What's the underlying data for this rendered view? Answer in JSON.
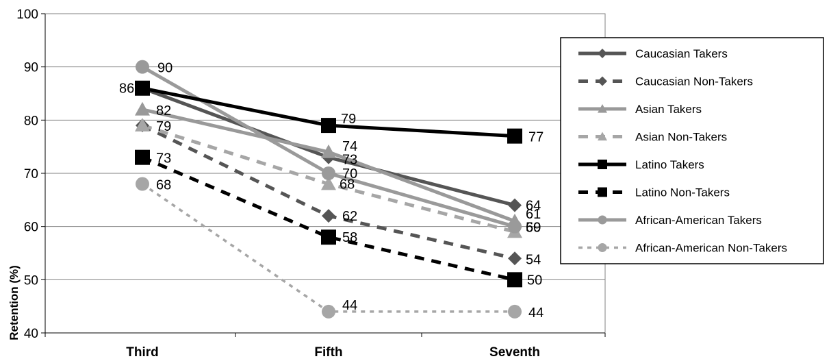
{
  "chart_data": {
    "type": "line",
    "title": "",
    "xlabel": "",
    "ylabel": "Retention (%)",
    "categories": [
      "Third",
      "Fifth",
      "Seventh"
    ],
    "ylim": [
      40,
      100
    ],
    "yticks": [
      40,
      50,
      60,
      70,
      80,
      90,
      100
    ],
    "grid": true,
    "legend_position": "right",
    "series": [
      {
        "name": "Caucasian Takers",
        "values": [
          86,
          73,
          64
        ],
        "color": "#555555",
        "dash": "solid",
        "marker": "diamond",
        "labels": [
          "",
          "",
          "64"
        ]
      },
      {
        "name": "Caucasian Non-Takers",
        "values": [
          79,
          62,
          54
        ],
        "color": "#555555",
        "dash": "dashed",
        "marker": "diamond",
        "labels": [
          "79",
          "62",
          "54"
        ]
      },
      {
        "name": "Asian Takers",
        "values": [
          82,
          74,
          61
        ],
        "color": "#999999",
        "dash": "solid",
        "marker": "triangle",
        "labels": [
          "82",
          "74",
          "61"
        ]
      },
      {
        "name": "Asian Non-Takers",
        "values": [
          79,
          68,
          59
        ],
        "color": "#a6a6a6",
        "dash": "dashed",
        "marker": "triangle",
        "labels": [
          "",
          "68",
          "59"
        ]
      },
      {
        "name": "Latino Takers",
        "values": [
          86,
          79,
          77
        ],
        "color": "#000000",
        "dash": "solid",
        "marker": "square",
        "labels": [
          "86",
          "79",
          "77"
        ]
      },
      {
        "name": "Latino Non-Takers",
        "values": [
          73,
          58,
          50
        ],
        "color": "#000000",
        "dash": "dashed",
        "marker": "square",
        "labels": [
          "73",
          "58",
          "50"
        ]
      },
      {
        "name": "African-American Takers",
        "values": [
          90,
          70,
          60
        ],
        "color": "#9a9a9a",
        "dash": "solid",
        "marker": "circle",
        "labels": [
          "90",
          "70",
          "60"
        ]
      },
      {
        "name": "African-American Non-Takers",
        "values": [
          68,
          44,
          44
        ],
        "color": "#a6a6a6",
        "dash": "dotted",
        "marker": "circle",
        "labels": [
          "68",
          "44",
          "44"
        ]
      }
    ],
    "extra_labels": [
      {
        "series": 0,
        "point": 1,
        "text": "73"
      }
    ]
  }
}
